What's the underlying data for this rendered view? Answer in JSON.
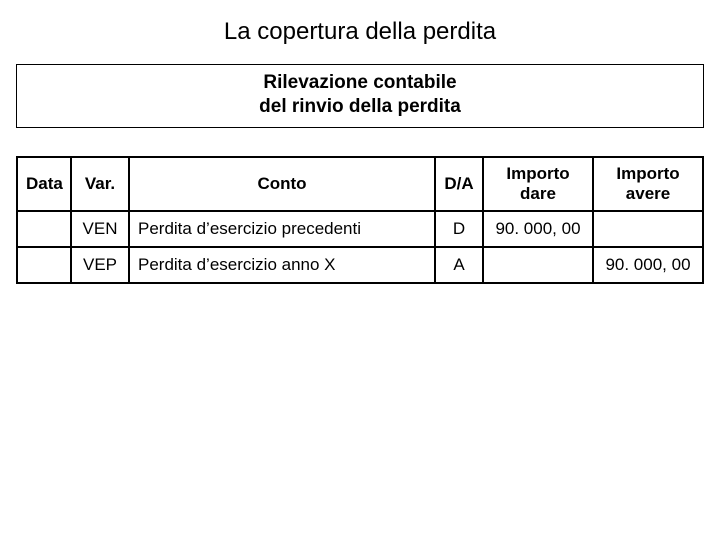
{
  "title": "La copertura della perdita",
  "subtitle_line1": "Rilevazione contabile",
  "subtitle_line2": "del rinvio della perdita",
  "table": {
    "columns": [
      "Data",
      "Var.",
      "Conto",
      "D/A",
      "Importo dare",
      "Importo avere"
    ],
    "rows": [
      {
        "data": "",
        "var": "VEN",
        "conto": "Perdita d’esercizio precedenti",
        "da": "D",
        "dare": "90. 000, 00",
        "avere": ""
      },
      {
        "data": "",
        "var": "VEP",
        "conto": "Perdita d’esercizio anno X",
        "da": "A",
        "dare": "",
        "avere": "90. 000, 00"
      }
    ],
    "header_fontsize": 17,
    "cell_fontsize": 17,
    "border_color": "#000000",
    "background_color": "#ffffff"
  }
}
